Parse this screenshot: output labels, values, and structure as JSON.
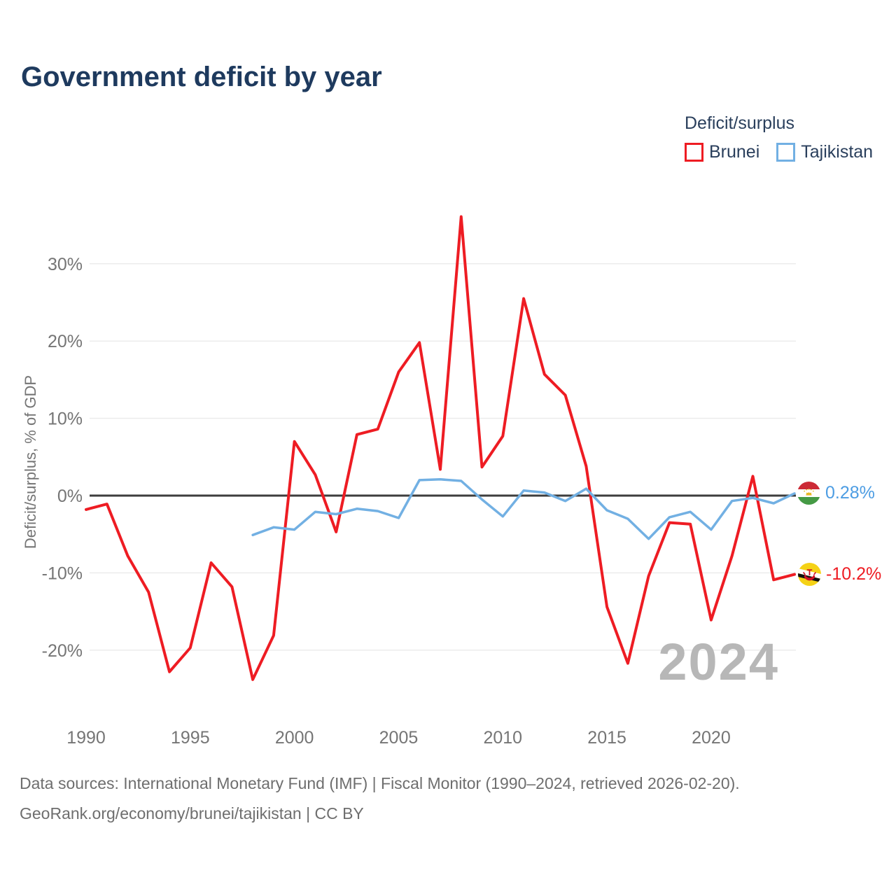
{
  "page": {
    "title": "Government deficit by year"
  },
  "legend": {
    "title": "Deficit/surplus",
    "items": [
      {
        "label": "Brunei",
        "color": "#ee1c23"
      },
      {
        "label": "Tajikistan",
        "color": "#72b0e3"
      }
    ]
  },
  "chart_data": {
    "type": "line",
    "title": "Government deficit by year",
    "ylabel": "Deficit/surplus, % of GDP",
    "xlabel": "",
    "x": [
      1990,
      1991,
      1992,
      1993,
      1994,
      1995,
      1996,
      1997,
      1998,
      1999,
      2000,
      2001,
      2002,
      2003,
      2004,
      2005,
      2006,
      2007,
      2008,
      2009,
      2010,
      2011,
      2012,
      2013,
      2014,
      2015,
      2016,
      2017,
      2018,
      2019,
      2020,
      2021,
      2022,
      2023,
      2024
    ],
    "series": [
      {
        "name": "Brunei",
        "color": "#ee1c23",
        "unit": "% of GDP",
        "values": [
          -1.8,
          -1.1,
          -7.8,
          -12.5,
          -22.8,
          -19.7,
          -8.7,
          -11.8,
          -23.8,
          -18.1,
          7.0,
          2.7,
          -4.7,
          7.9,
          8.6,
          16.0,
          19.8,
          3.4,
          36.1,
          3.7,
          7.7,
          25.5,
          15.7,
          13.0,
          3.8,
          -14.4,
          -21.7,
          -10.4,
          -3.5,
          -3.7,
          -16.1,
          -7.8,
          2.5,
          -10.9,
          -10.2
        ]
      },
      {
        "name": "Tajikistan",
        "color": "#72b0e3",
        "unit": "% of GDP",
        "values": [
          null,
          null,
          null,
          null,
          null,
          null,
          null,
          null,
          -5.1,
          -4.1,
          -4.4,
          -2.1,
          -2.4,
          -1.7,
          -2.0,
          -2.9,
          2.0,
          2.1,
          1.9,
          -0.5,
          -2.7,
          0.65,
          0.4,
          -0.7,
          0.9,
          -1.9,
          -3.0,
          -5.6,
          -2.8,
          -2.1,
          -4.4,
          -0.7,
          -0.3,
          -1.0,
          0.28
        ]
      }
    ],
    "yticks": [
      {
        "value": 30,
        "label": "30%"
      },
      {
        "value": 20,
        "label": "20%"
      },
      {
        "value": 10,
        "label": "10%"
      },
      {
        "value": 0,
        "label": "0%"
      },
      {
        "value": -10,
        "label": "-10%"
      },
      {
        "value": -20,
        "label": "-20%"
      }
    ],
    "xticks": [
      {
        "value": 1990,
        "label": "1990"
      },
      {
        "value": 1995,
        "label": "1995"
      },
      {
        "value": 2000,
        "label": "2000"
      },
      {
        "value": 2005,
        "label": "2005"
      },
      {
        "value": 2010,
        "label": "2010"
      },
      {
        "value": 2015,
        "label": "2015"
      },
      {
        "value": 2020,
        "label": "2020"
      }
    ],
    "ylim": [
      -26,
      37
    ],
    "grid": true,
    "zero_line": true,
    "legend_position": "top-right",
    "end_labels": [
      {
        "series": "Tajikistan",
        "text": "0.28%",
        "color": "#4d9de3",
        "flag": "tajikistan"
      },
      {
        "series": "Brunei",
        "text": "-10.2%",
        "color": "#ee1c23",
        "flag": "brunei"
      }
    ]
  },
  "watermark": "2024",
  "footer": {
    "line1": "Data sources: International Monetary Fund (IMF) | Fiscal Monitor (1990–2024, retrieved 2026-02-20).",
    "line2": "GeoRank.org/economy/brunei/tajikistan | CC BY"
  }
}
